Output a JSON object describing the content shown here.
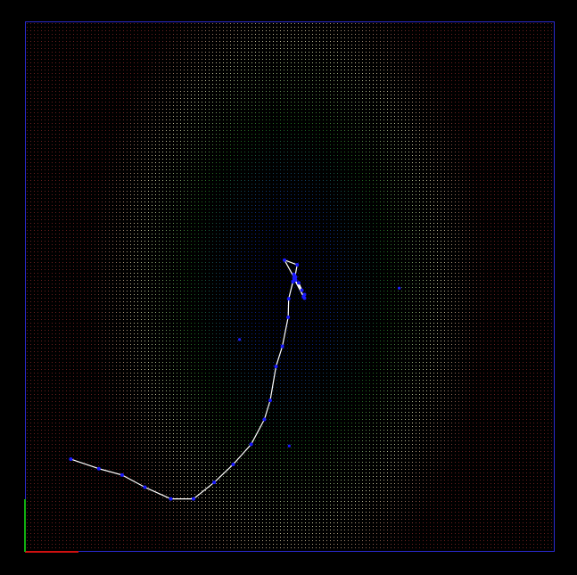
{
  "scene": {
    "background_color": "#000000",
    "frame_color": "#2a2ad0",
    "path_color": "#ffffff",
    "marker_color": "#1a1aff",
    "axis_x_color": "#d01010",
    "axis_y_color": "#10b010"
  },
  "chart_data": {
    "type": "scatter",
    "title": "",
    "xlabel": "",
    "ylabel": "",
    "colormap": [
      "#000060",
      "#0a2a8a",
      "#1e6e1e",
      "#c8c8a0",
      "#6a1e1e"
    ],
    "field": {
      "kind": "elliptical-distance",
      "center": [
        0.495,
        0.505
      ],
      "radius_x": 0.34,
      "radius_y": 0.55
    },
    "path": {
      "x": [
        0.085,
        0.138,
        0.182,
        0.225,
        0.274,
        0.317,
        0.356,
        0.392,
        0.426,
        0.451,
        0.462,
        0.473,
        0.485,
        0.496,
        0.497,
        0.505,
        0.507,
        0.508,
        0.51,
        0.51,
        0.489,
        0.513,
        0.508,
        0.525,
        0.527,
        0.527,
        0.507,
        0.522,
        0.516
      ],
      "y": [
        0.175,
        0.157,
        0.145,
        0.122,
        0.1,
        0.1,
        0.131,
        0.165,
        0.203,
        0.25,
        0.286,
        0.35,
        0.388,
        0.443,
        0.478,
        0.51,
        0.524,
        0.521,
        0.519,
        0.513,
        0.551,
        0.542,
        0.514,
        0.482,
        0.486,
        0.479,
        0.517,
        0.494,
        0.508
      ]
    },
    "outliers": {
      "x": [
        0.404,
        0.498,
        0.706
      ],
      "y": [
        0.401,
        0.2,
        0.498
      ]
    }
  }
}
